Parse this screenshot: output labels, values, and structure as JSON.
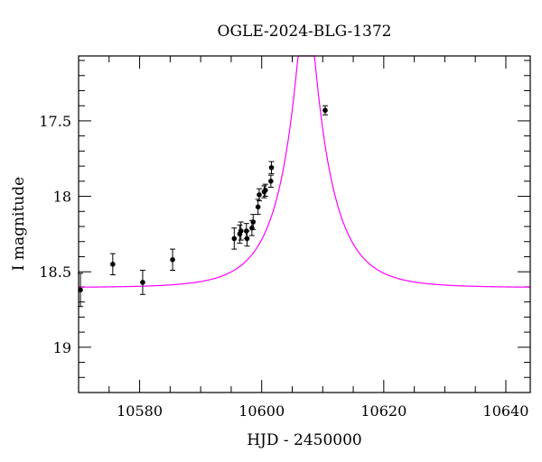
{
  "chart_data": {
    "type": "scatter",
    "title": "OGLE-2024-BLG-1372",
    "xlabel": "HJD - 2450000",
    "ylabel": "I magnitude",
    "xlim": [
      10570,
      10644
    ],
    "ylim": [
      17.07,
      19.3
    ],
    "y_inverted": true,
    "grid": false,
    "x_major_ticks": [
      10580,
      10600,
      10620,
      10640
    ],
    "x_tick_labels": [
      "10580",
      "10600",
      "10620",
      "10640"
    ],
    "x_minor_step": 5,
    "y_major_ticks": [
      17.5,
      18,
      18.5,
      19
    ],
    "y_tick_labels": [
      "17.5",
      "18",
      "18.5",
      "19"
    ],
    "y_minor_step": 0.1,
    "colors": {
      "points": "#000000",
      "model": "#ff00ff"
    },
    "series": [
      {
        "type": "errorbar",
        "points": [
          {
            "x": 10570.3,
            "y": 18.62,
            "err": 0.11
          },
          {
            "x": 10575.6,
            "y": 18.45,
            "err": 0.07
          },
          {
            "x": 10580.5,
            "y": 18.57,
            "err": 0.08
          },
          {
            "x": 10585.4,
            "y": 18.42,
            "err": 0.07
          },
          {
            "x": 10595.5,
            "y": 18.28,
            "err": 0.07
          },
          {
            "x": 10596.4,
            "y": 18.25,
            "err": 0.06
          },
          {
            "x": 10596.6,
            "y": 18.23,
            "err": 0.06
          },
          {
            "x": 10597.5,
            "y": 18.23,
            "err": 0.05
          },
          {
            "x": 10597.6,
            "y": 18.28,
            "err": 0.05
          },
          {
            "x": 10598.4,
            "y": 18.21,
            "err": 0.05
          },
          {
            "x": 10598.6,
            "y": 18.17,
            "err": 0.05
          },
          {
            "x": 10599.4,
            "y": 18.07,
            "err": 0.05
          },
          {
            "x": 10599.6,
            "y": 17.99,
            "err": 0.04
          },
          {
            "x": 10600.4,
            "y": 17.97,
            "err": 0.04
          },
          {
            "x": 10600.6,
            "y": 17.96,
            "err": 0.04
          },
          {
            "x": 10601.5,
            "y": 17.9,
            "err": 0.04
          },
          {
            "x": 10601.6,
            "y": 17.81,
            "err": 0.04
          },
          {
            "x": 10610.4,
            "y": 17.43,
            "err": 0.03
          }
        ]
      },
      {
        "type": "line",
        "model": "Paczynski",
        "baseline_mag": 18.605,
        "t0": 10607.3,
        "tE": 7.4,
        "u0": 0.17
      }
    ]
  }
}
